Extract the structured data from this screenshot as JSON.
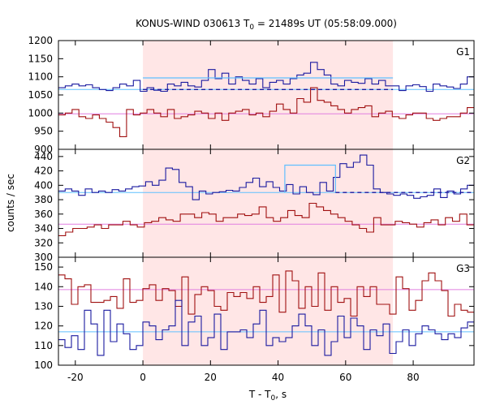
{
  "chart_data": {
    "type": "line",
    "title": "KONUS-WIND 030613 T",
    "title_sub": "0",
    "title_rest": " = 21489s UT (05:58:09.000)",
    "xlabel_main": "T - T",
    "xlabel_sub": "0",
    "xlabel_rest": ", s",
    "ylabel": "counts / sec",
    "xlim": [
      -25,
      98
    ],
    "xticks": [
      -20,
      0,
      20,
      40,
      60,
      80
    ],
    "shade": [
      0,
      74
    ],
    "colors": {
      "blue": "#1a1aa0",
      "red": "#a01010",
      "light_blue": "#5fbfff",
      "pink": "#e07fe0",
      "shade": "#ffe6e6"
    },
    "panels": [
      {
        "name": "G1",
        "ylim": [
          900,
          1200
        ],
        "yticks": [
          900,
          950,
          1000,
          1050,
          1100,
          1150,
          1200
        ],
        "bg_blue": 1065,
        "bg_red": 998,
        "fit": {
          "x0": 0,
          "x1": 74,
          "y": 1097
        },
        "dashed": {
          "x0": 0,
          "x1": 74,
          "y": 1065
        },
        "blue": [
          1070,
          1075,
          1080,
          1075,
          1078,
          1070,
          1065,
          1062,
          1070,
          1080,
          1075,
          1090,
          1060,
          1070,
          1063,
          1060,
          1080,
          1075,
          1085,
          1075,
          1072,
          1090,
          1120,
          1095,
          1110,
          1080,
          1100,
          1090,
          1080,
          1095,
          1070,
          1085,
          1090,
          1080,
          1095,
          1105,
          1110,
          1140,
          1120,
          1105,
          1080,
          1075,
          1090,
          1085,
          1082,
          1095,
          1080,
          1090,
          1075,
          1075,
          1062,
          1075,
          1078,
          1073,
          1060,
          1080,
          1075,
          1072,
          1068,
          1080,
          1100
        ],
        "red": [
          995,
          1000,
          1010,
          990,
          985,
          995,
          985,
          975,
          960,
          935,
          1010,
          995,
          1000,
          1010,
          1000,
          990,
          1010,
          985,
          990,
          995,
          1005,
          1000,
          985,
          1000,
          980,
          1000,
          1005,
          1010,
          995,
          1000,
          990,
          1005,
          1025,
          1010,
          1000,
          1040,
          1030,
          1070,
          1035,
          1030,
          1020,
          1010,
          1000,
          1010,
          1015,
          1020,
          990,
          1000,
          1005,
          990,
          985,
          995,
          1000,
          1000,
          985,
          980,
          985,
          990,
          990,
          1000,
          1015
        ]
      },
      {
        "name": "G2",
        "ylim": [
          300,
          450
        ],
        "yticks": [
          300,
          320,
          340,
          360,
          380,
          400,
          420,
          440
        ],
        "bg_blue": 390,
        "bg_red": 346,
        "fit": {
          "x0": 42,
          "x1": 57,
          "y": 428,
          "x0b": 42,
          "x1b": 57,
          "ylow": 390
        },
        "dashed": {
          "x0": 57,
          "x1": 98,
          "y": 390
        },
        "blue": [
          392,
          395,
          392,
          386,
          395,
          390,
          392,
          390,
          394,
          392,
          395,
          398,
          399,
          405,
          400,
          407,
          424,
          422,
          404,
          398,
          380,
          392,
          388,
          390,
          391,
          393,
          392,
          397,
          404,
          410,
          398,
          405,
          397,
          392,
          401,
          388,
          398,
          390,
          387,
          404,
          392,
          411,
          430,
          425,
          432,
          442,
          428,
          395,
          390,
          388,
          386,
          388,
          386,
          382,
          384,
          386,
          395,
          383,
          392,
          388,
          395,
          400
        ],
        "red": [
          330,
          335,
          340,
          340,
          342,
          345,
          340,
          345,
          345,
          350,
          345,
          342,
          348,
          350,
          355,
          352,
          350,
          360,
          360,
          355,
          362,
          360,
          350,
          355,
          355,
          360,
          358,
          360,
          370,
          355,
          350,
          355,
          365,
          358,
          355,
          375,
          370,
          365,
          360,
          355,
          350,
          345,
          340,
          335,
          355,
          345,
          345,
          350,
          348,
          346,
          342,
          348,
          352,
          345,
          355,
          350,
          360,
          345
        ]
      },
      {
        "name": "G3",
        "ylim": [
          100,
          155
        ],
        "yticks": [
          100,
          110,
          120,
          130,
          140,
          150
        ],
        "bg_blue": 117,
        "bg_red": 138.5,
        "fit": null,
        "dashed": null,
        "blue": [
          113,
          109,
          115,
          108,
          128,
          121,
          105,
          128,
          112,
          121,
          116,
          108,
          110,
          122,
          120,
          113,
          118,
          120,
          133,
          110,
          122,
          125,
          110,
          114,
          126,
          108,
          117,
          117,
          118,
          114,
          121,
          128,
          110,
          114,
          112,
          114,
          120,
          126,
          120,
          110,
          118,
          105,
          112,
          125,
          114,
          124,
          120,
          108,
          118,
          115,
          121,
          106,
          112,
          118,
          110,
          116,
          120,
          118,
          116,
          113,
          116,
          114,
          119,
          122
        ],
        "red": [
          146,
          144,
          131,
          140,
          141,
          132,
          132,
          133,
          135,
          129,
          144,
          132,
          133,
          139,
          141,
          133,
          139,
          138,
          130,
          145,
          126,
          136,
          140,
          138,
          130,
          128,
          137,
          135,
          137,
          134,
          140,
          132,
          135,
          146,
          127,
          148,
          143,
          129,
          140,
          130,
          147,
          128,
          140,
          132,
          134,
          125,
          140,
          135,
          140,
          131,
          131,
          126,
          145,
          139,
          128,
          133,
          143,
          147,
          143,
          138,
          125,
          131,
          128,
          127
        ]
      }
    ]
  }
}
